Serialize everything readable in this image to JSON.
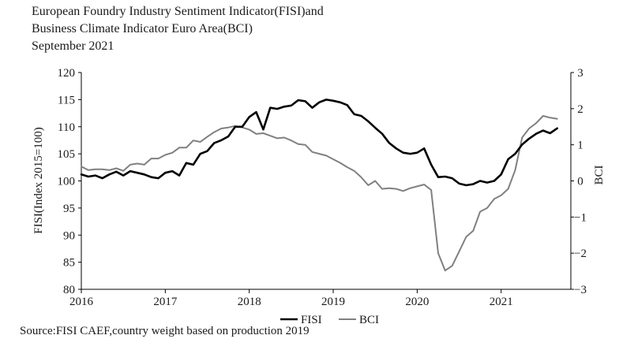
{
  "header": {
    "title_line1": "European Foundry Industry Sentiment Indicator(FISI)and",
    "title_line2": "Business Climate Indicator Euro Area(BCI)",
    "subtitle": "September 2021"
  },
  "source": "Source:FISI CAEF,country weight based on production 2019",
  "chart_data": {
    "type": "line",
    "title": "European Foundry Industry Sentiment Indicator(FISI)and Business Climate Indicator Euro Area(BCI)",
    "subtitle": "September 2021",
    "ylabel": "FISI(Index 2015=100)",
    "y2label": "BCI",
    "ylim": [
      80,
      120
    ],
    "y2lim": [
      -3,
      3
    ],
    "xlim": [
      2016,
      2021.83
    ],
    "yticks": [
      "80",
      "85",
      "90",
      "95",
      "100",
      "105",
      "110",
      "115",
      "120"
    ],
    "y2ticks": [
      "−3",
      "−2",
      "−1",
      "0",
      "1",
      "2",
      "3"
    ],
    "xticks": [
      "2016",
      "2017",
      "2018",
      "2019",
      "2020",
      "2021"
    ],
    "grid": false,
    "legend_position": "bottom",
    "x": [
      2016.0,
      2016.083,
      2016.167,
      2016.25,
      2016.333,
      2016.417,
      2016.5,
      2016.583,
      2016.667,
      2016.75,
      2016.833,
      2016.917,
      2017.0,
      2017.083,
      2017.167,
      2017.25,
      2017.333,
      2017.417,
      2017.5,
      2017.583,
      2017.667,
      2017.75,
      2017.833,
      2017.917,
      2018.0,
      2018.083,
      2018.167,
      2018.25,
      2018.333,
      2018.417,
      2018.5,
      2018.583,
      2018.667,
      2018.75,
      2018.833,
      2018.917,
      2019.0,
      2019.083,
      2019.167,
      2019.25,
      2019.333,
      2019.417,
      2019.5,
      2019.583,
      2019.667,
      2019.75,
      2019.833,
      2019.917,
      2020.0,
      2020.083,
      2020.167,
      2020.25,
      2020.333,
      2020.417,
      2020.5,
      2020.583,
      2020.667,
      2020.75,
      2020.833,
      2020.917,
      2021.0,
      2021.083,
      2021.167,
      2021.25,
      2021.333,
      2021.417,
      2021.5,
      2021.583,
      2021.667
    ],
    "series": [
      {
        "name": "FISI",
        "axis": "left",
        "color": "#000000",
        "values": [
          101.2,
          100.8,
          101.0,
          100.5,
          101.2,
          101.7,
          101.0,
          101.8,
          101.5,
          101.2,
          100.7,
          100.5,
          101.5,
          101.8,
          101.0,
          103.3,
          103.0,
          105.0,
          105.5,
          107.0,
          107.5,
          108.2,
          110.0,
          110.0,
          111.8,
          112.7,
          109.5,
          113.5,
          113.3,
          113.7,
          113.9,
          114.9,
          114.7,
          113.5,
          114.5,
          115.0,
          114.8,
          114.5,
          114.0,
          112.3,
          112.0,
          111.0,
          109.8,
          108.7,
          107.0,
          106.0,
          105.2,
          105.0,
          105.2,
          106.0,
          103.0,
          100.7,
          100.8,
          100.5,
          99.5,
          99.2,
          99.4,
          100.0,
          99.7,
          100.0,
          101.2,
          104.0,
          105.0,
          106.7,
          107.8,
          108.7,
          109.3,
          108.8,
          109.7
        ]
      },
      {
        "name": "BCI",
        "axis": "right",
        "color": "#808080",
        "values": [
          0.4,
          0.3,
          0.32,
          0.32,
          0.3,
          0.35,
          0.28,
          0.45,
          0.48,
          0.45,
          0.62,
          0.62,
          0.72,
          0.78,
          0.92,
          0.92,
          1.12,
          1.08,
          1.22,
          1.35,
          1.45,
          1.48,
          1.52,
          1.48,
          1.42,
          1.3,
          1.32,
          1.25,
          1.18,
          1.2,
          1.12,
          1.02,
          1.0,
          0.8,
          0.75,
          0.7,
          0.6,
          0.5,
          0.38,
          0.28,
          0.1,
          -0.12,
          0.0,
          -0.22,
          -0.2,
          -0.22,
          -0.28,
          -0.2,
          -0.15,
          -0.1,
          -0.25,
          -2.0,
          -2.48,
          -2.35,
          -1.95,
          -1.55,
          -1.38,
          -0.85,
          -0.75,
          -0.5,
          -0.4,
          -0.22,
          0.3,
          1.2,
          1.45,
          1.6,
          1.8,
          1.75,
          1.72
        ]
      }
    ]
  }
}
